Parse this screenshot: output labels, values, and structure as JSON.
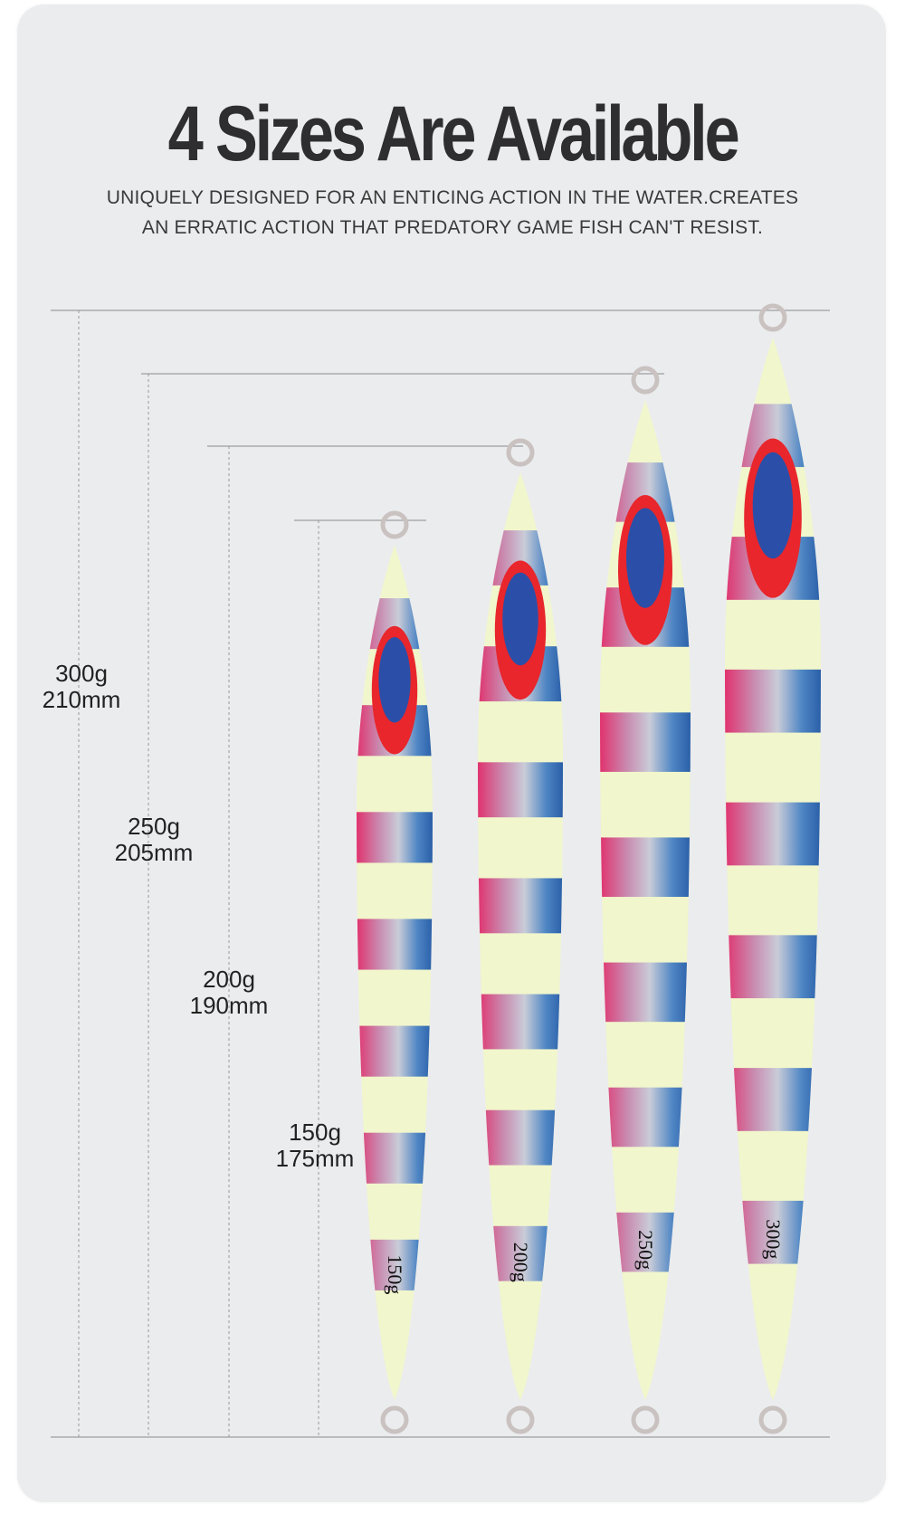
{
  "title": "4 Sizes Are Available",
  "subtitle_lines": [
    "UNIQUELY DESIGNED FOR AN ENTICING ACTION IN THE WATER.CREATES",
    "AN ERRATIC ACTION THAT PREDATORY GAME FISH CAN'T RESIST."
  ],
  "sizes": [
    {
      "weight": "300g",
      "length": "210mm",
      "lure_marking": "300g"
    },
    {
      "weight": "250g",
      "length": "205mm",
      "lure_marking": "250g"
    },
    {
      "weight": "200g",
      "length": "190mm",
      "lure_marking": "200g"
    },
    {
      "weight": "150g",
      "length": "175mm",
      "lure_marking": "150g"
    }
  ],
  "colors": {
    "glow": "#f1f6cc",
    "pink": "#e0336e",
    "blue": "#2f6fb5",
    "eye_red": "#e8262c",
    "eye_blue": "#2b4fa8"
  }
}
